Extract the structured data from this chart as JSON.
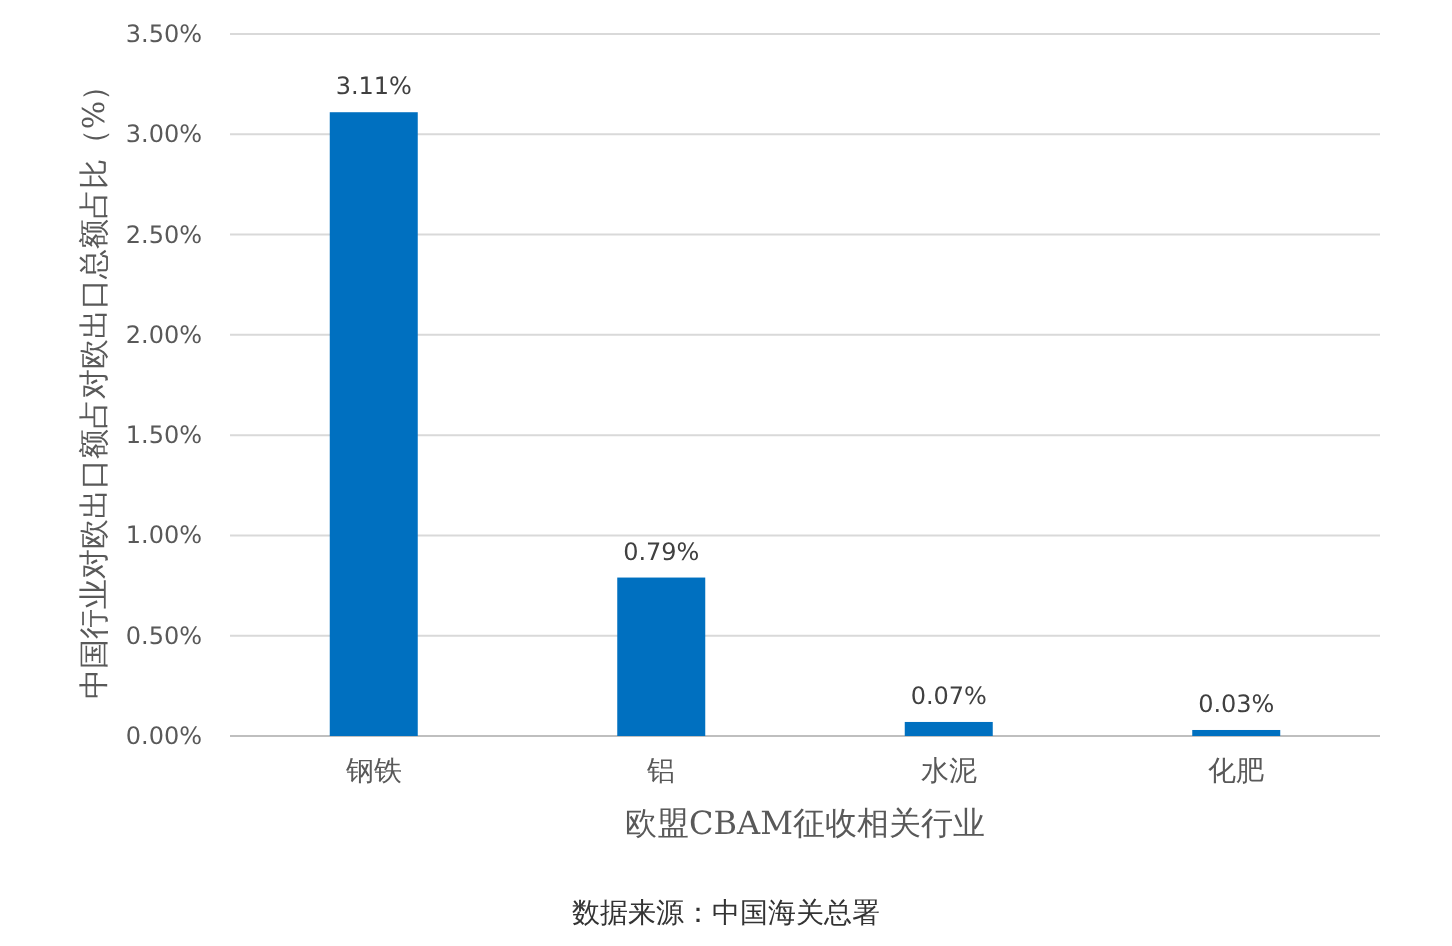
{
  "chart_data": {
    "type": "bar",
    "xlabel": "欧盟CBAM征收相关行业",
    "ylabel": "中国行业对欧出口额占对欧出口总额占比（%）",
    "categories": [
      "钢铁",
      "铝",
      "水泥",
      "化肥"
    ],
    "values": [
      3.11,
      0.79,
      0.07,
      0.03
    ],
    "value_labels": [
      "3.11%",
      "0.79%",
      "0.07%",
      "0.03%"
    ],
    "color": "#0070c0",
    "ylim": [
      0,
      3.5
    ],
    "yticks": [
      {
        "value": 0,
        "label": "0.00%"
      },
      {
        "value": 0.5,
        "label": "0.50%"
      },
      {
        "value": 1,
        "label": "1.00%"
      },
      {
        "value": 1.5,
        "label": "1.50%"
      },
      {
        "value": 2,
        "label": "2.00%"
      },
      {
        "value": 2.5,
        "label": "2.50%"
      },
      {
        "value": 3,
        "label": "3.00%"
      },
      {
        "value": 3.5,
        "label": "3.50%"
      }
    ],
    "grid": "y",
    "annotations": [
      "数据来源：中国海关总署"
    ]
  }
}
